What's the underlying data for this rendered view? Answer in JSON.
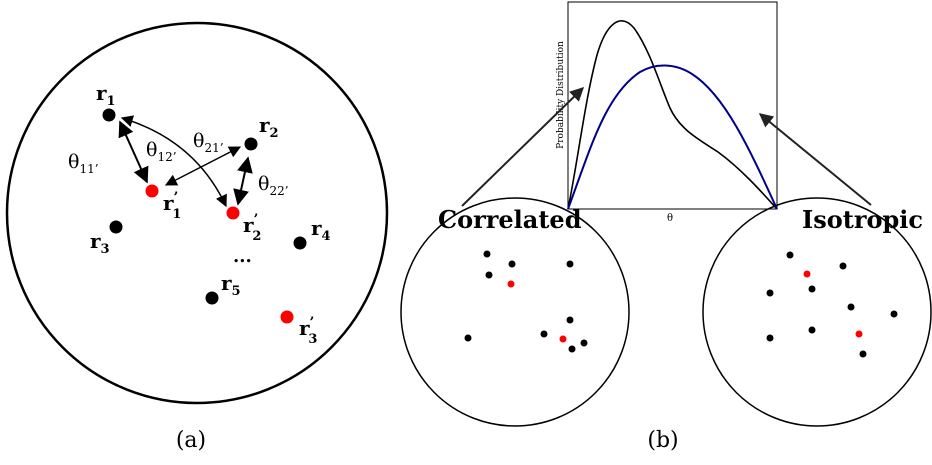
{
  "panel_a": {
    "caption": "(a)",
    "points": [
      {
        "id": "r1",
        "label": "r",
        "sub": "1",
        "prime": "",
        "color": "#000000"
      },
      {
        "id": "r2",
        "label": "r",
        "sub": "2",
        "prime": "",
        "color": "#000000"
      },
      {
        "id": "r3",
        "label": "r",
        "sub": "3",
        "prime": "",
        "color": "#000000"
      },
      {
        "id": "r4",
        "label": "r",
        "sub": "4",
        "prime": "",
        "color": "#000000"
      },
      {
        "id": "r5",
        "label": "r",
        "sub": "5",
        "prime": "",
        "color": "#000000"
      },
      {
        "id": "r1p",
        "label": "r",
        "sub": "1",
        "prime": "’",
        "color": "#ff0000"
      },
      {
        "id": "r2p",
        "label": "r",
        "sub": "2",
        "prime": "’",
        "color": "#ff0000"
      },
      {
        "id": "r3p",
        "label": "r",
        "sub": "3",
        "prime": "’",
        "color": "#ff0000"
      }
    ],
    "angles": [
      {
        "id": "t11",
        "symbol": "θ",
        "sub": "11’"
      },
      {
        "id": "t12",
        "symbol": "θ",
        "sub": "12’"
      },
      {
        "id": "t21",
        "symbol": "θ",
        "sub": "21’"
      },
      {
        "id": "t22",
        "symbol": "θ",
        "sub": "22’"
      }
    ],
    "ellipsis": "..."
  },
  "panel_b": {
    "caption": "(b)",
    "correlated_label": "Correlated",
    "isotropic_label": "Isotropic",
    "plot": {
      "ylabel": "Probability Distribution",
      "xlabel": "θ",
      "series": [
        {
          "color": "#000000"
        },
        {
          "color": "#00008b"
        }
      ]
    }
  },
  "colors": {
    "black_point": "#000000",
    "red_point": "#ff0000",
    "isotropic_curve": "#00008b"
  }
}
